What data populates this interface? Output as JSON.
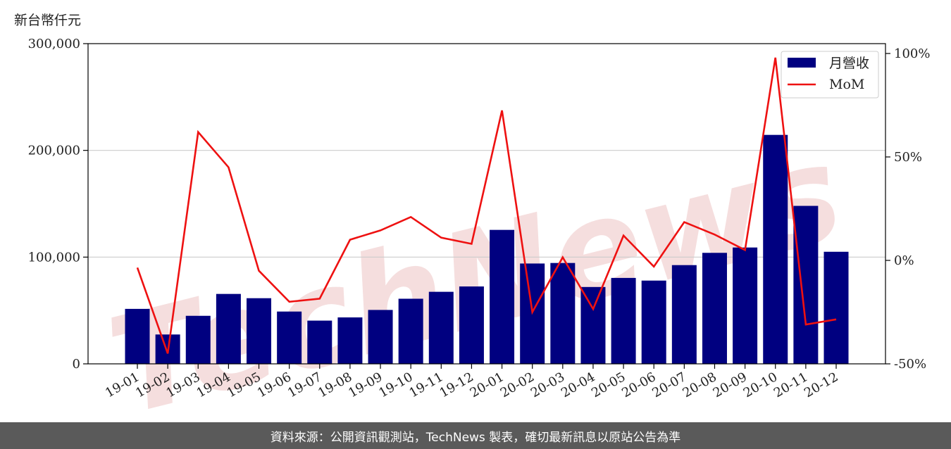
{
  "unit_label": "新台幣仟元",
  "footer_text": "資料來源：公開資訊觀測站，TechNews 製表，確切最新訊息以原站公告為準",
  "watermark_text": "TechNews",
  "colors": {
    "bar": "#000080",
    "line": "#ee1111",
    "watermark": "#f2d4d4",
    "footer_bg": "#5a5a5a"
  },
  "chart_data": {
    "type": "bar",
    "categories": [
      "19-01",
      "19-02",
      "19-03",
      "19-04",
      "19-05",
      "19-06",
      "19-07",
      "19-08",
      "19-09",
      "19-10",
      "19-11",
      "19-12",
      "20-01",
      "20-02",
      "20-03",
      "20-04",
      "20-05",
      "20-06",
      "20-07",
      "20-08",
      "20-09",
      "20-10",
      "20-11",
      "20-12"
    ],
    "series": [
      {
        "name": "月營收",
        "type": "bar",
        "axis": "left",
        "values": [
          51500,
          27500,
          45000,
          65500,
          61500,
          49000,
          40500,
          43500,
          50500,
          61000,
          67500,
          72500,
          125500,
          94000,
          94500,
          72000,
          80500,
          78000,
          92500,
          104000,
          109000,
          214500,
          148000,
          105000
        ]
      },
      {
        "name": "MoM",
        "type": "line",
        "axis": "right",
        "values": [
          -3.5,
          -45,
          62,
          45,
          -5,
          -20,
          -18.5,
          10,
          14.5,
          21,
          11,
          8,
          72.5,
          -25,
          1.5,
          -23.5,
          12,
          -3,
          18.5,
          12.5,
          5,
          98,
          -31,
          -28.5
        ]
      }
    ],
    "y_left": {
      "ylim": [
        0,
        300000
      ],
      "ticks": [
        0,
        100000,
        200000,
        300000
      ],
      "tick_labels": [
        "0",
        "100,000",
        "200,000",
        "300,000"
      ]
    },
    "y_right": {
      "ylim": [
        -50,
        100
      ],
      "ticks": [
        -50,
        0,
        50,
        100
      ],
      "tick_labels": [
        "-50%",
        "0%",
        "50%",
        "100%"
      ]
    },
    "grid": "horizontal",
    "legend": "top-right"
  }
}
